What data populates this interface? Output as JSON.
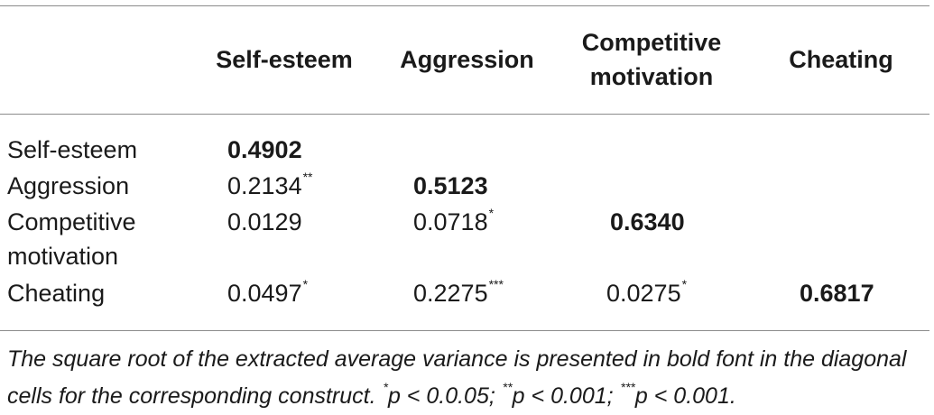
{
  "headers": [
    "Self-esteem",
    "Aggression",
    "Competitive motivation",
    "Cheating"
  ],
  "rows": [
    {
      "label": "Self-esteem",
      "cells": [
        {
          "v": "0.4902",
          "sig": "",
          "bold": true
        }
      ]
    },
    {
      "label": "Aggression",
      "cells": [
        {
          "v": "0.2134",
          "sig": "**",
          "bold": false
        },
        {
          "v": "0.5123",
          "sig": "",
          "bold": true
        }
      ]
    },
    {
      "label": "Competitive motivation",
      "cells": [
        {
          "v": "0.0129",
          "sig": "",
          "bold": false
        },
        {
          "v": "0.0718",
          "sig": "*",
          "bold": false
        },
        {
          "v": "0.6340",
          "sig": "",
          "bold": true
        }
      ]
    },
    {
      "label": "Cheating",
      "cells": [
        {
          "v": "0.0497",
          "sig": "*",
          "bold": false
        },
        {
          "v": "0.2275",
          "sig": "***",
          "bold": false
        },
        {
          "v": "0.0275",
          "sig": "*",
          "bold": false
        },
        {
          "v": "0.6817",
          "sig": "",
          "bold": true
        }
      ]
    }
  ],
  "footnote": {
    "text": "The square root of the extracted average variance is presented in bold font in the diagonal cells for the corresponding construct.",
    "p1_mark": "*",
    "p1_text": "p < 0.0.05;",
    "p2_mark": "**",
    "p2_text": "p < 0.001;",
    "p3_mark": "***",
    "p3_text": "p < 0.001."
  }
}
